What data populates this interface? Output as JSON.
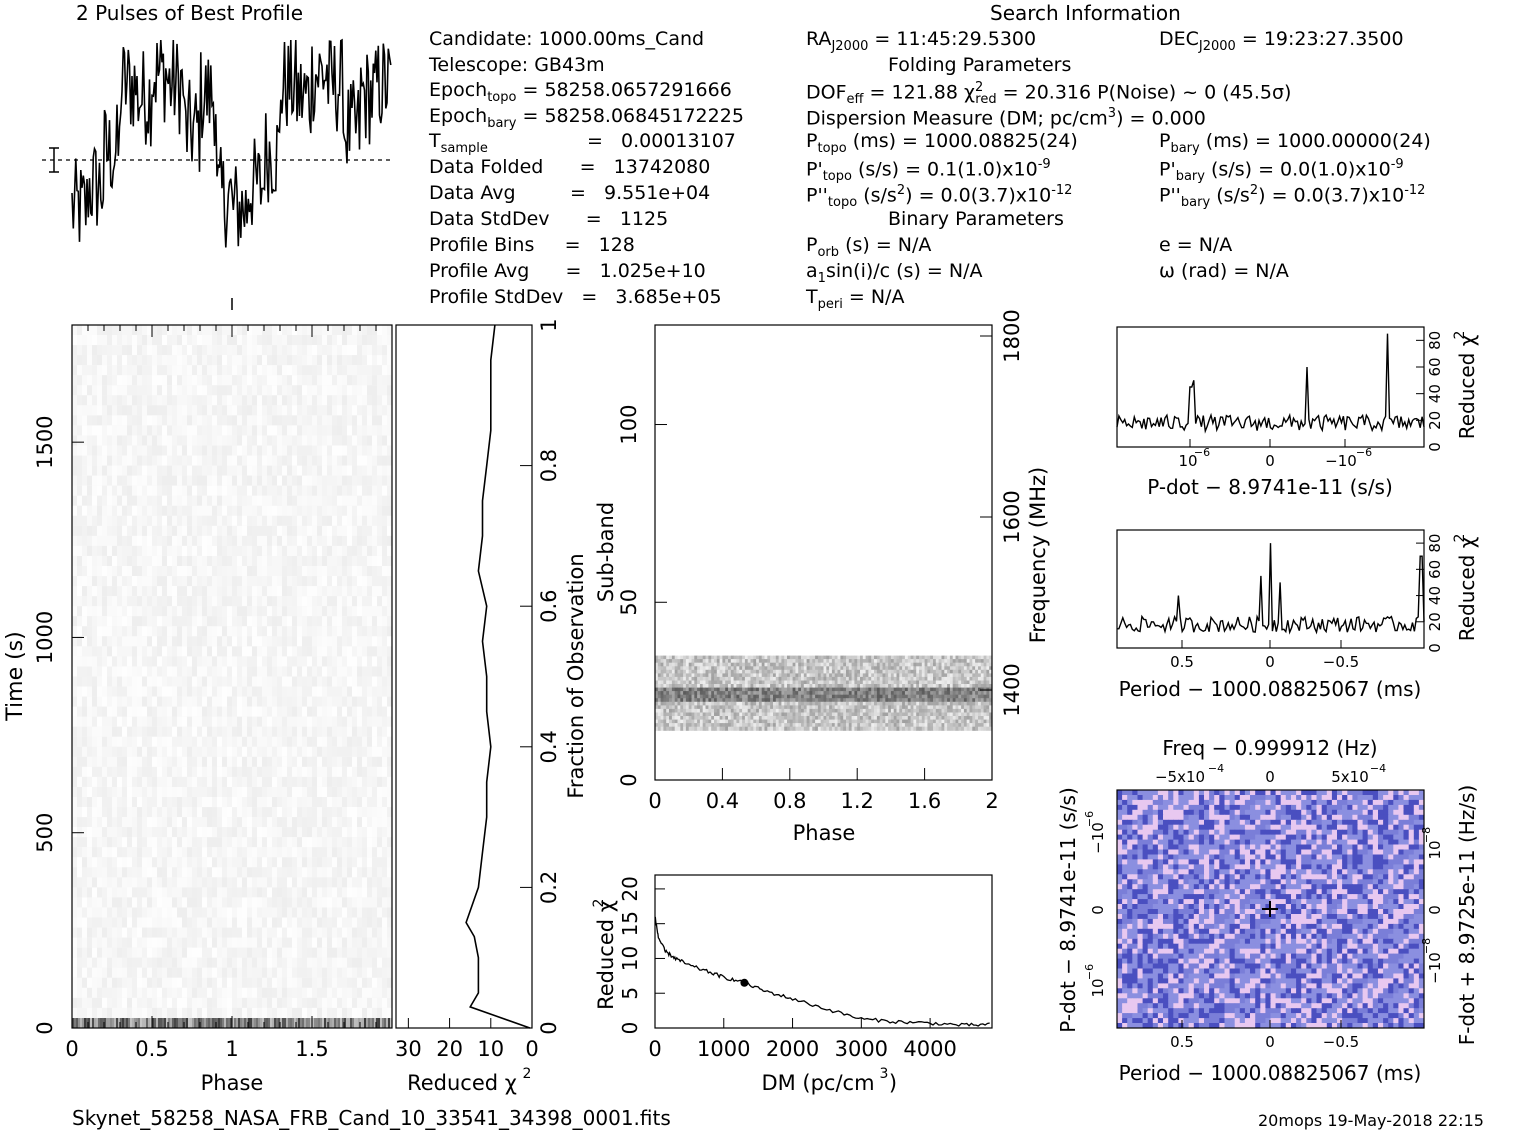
{
  "profile_title": "2 Pulses of Best Profile",
  "search_title": "Search Information",
  "info": {
    "candidate": "Candidate:  1000.00ms_Cand",
    "telescope": "Telescope:  GB43m",
    "epoch_topo_label": "Epoch",
    "epoch_topo_sub": "topo",
    "epoch_topo_val": "= 58258.0657291666",
    "epoch_bary_label": "Epoch",
    "epoch_bary_sub": "bary",
    "epoch_bary_val": "= 58258.06845172225",
    "tsample_label": "T",
    "tsample_sub": "sample",
    "tsample_val": "=   0.00013107",
    "data_folded": "Data Folded      =   13742080",
    "data_avg": "Data Avg         =   9.551e+04",
    "data_stddev": "Data StdDev      =   1125",
    "profile_bins": "Profile Bins     =   128",
    "profile_avg": "Profile Avg      =   1.025e+10",
    "profile_stddev": "Profile StdDev   =   3.685e+05",
    "ra_label": "RA",
    "ra_sub": "J2000",
    "ra_val": "= 11:45:29.5300",
    "dec_label": "DEC",
    "dec_sub": "J2000",
    "dec_val": "= 19:23:27.3500",
    "folding_header": "Folding Parameters",
    "dof_line": "DOF",
    "dof_sub": "eff",
    "dof_val": "= 121.88",
    "chi_label": "χ",
    "chi_sup": "2",
    "chi_sub": "red",
    "chi_val": "= 20.316",
    "pnoise": "P(Noise) ~ 0",
    "sigma": "(45.5σ)",
    "dm_line": "Dispersion Measure (DM; pc/cm",
    "dm_sup": "3",
    "dm_val": ") = 0.000",
    "ptopo_label": "P",
    "ptopo_sub": "topo",
    "ptopo_val": "(ms) =  1000.08825(24)",
    "pbary_label": "P",
    "pbary_sub": "bary",
    "pbary_val": "(ms) =  1000.00000(24)",
    "pdtopo_label": "P'",
    "pdtopo_sub": "topo",
    "pdtopo_val": "(s/s) =  0.1(1.0)x10",
    "pdtopo_exp": "-9",
    "pdbary_label": "P'",
    "pdbary_sub": "bary",
    "pdbary_val": "(s/s) = 0.0(1.0)x10",
    "pdbary_exp": "-9",
    "pddtopo_label": "P''",
    "pddtopo_sub": "topo",
    "pddtopo_val": "(s/s",
    "pddtopo_val2": ") = 0.0(3.7)x10",
    "pddtopo_exp": "-12",
    "pddbary_label": "P''",
    "pddbary_sub": "bary",
    "pddbary_val": "(s/s",
    "pddbary_val2": ") = 0.0(3.7)x10",
    "pddbary_exp": "-12",
    "binary_header": "Binary Parameters",
    "porb_label": "P",
    "porb_sub": "orb",
    "porb_val": "(s) = N/A",
    "a1_label": "a",
    "a1_sub": "1",
    "a1_val": "sin(i)/c (s) = N/A",
    "tperi_label": "T",
    "tperi_sub": "peri",
    "tperi_val": "= N/A",
    "e_val": "e = N/A",
    "omega_val": "ω (rad) = N/A"
  },
  "footer": {
    "filename": "Skynet_58258_NASA_FRB_Cand_10_33541_34398_0001.fits",
    "stamp": "20mops 19-May-2018 22:15"
  },
  "chart_data": [
    {
      "type": "line",
      "name": "profile",
      "title": "2 Pulses of Best Profile",
      "x_range": [
        0,
        2
      ],
      "description_values": "noisy profile, two pulses; relative amplitude 0-1",
      "segments": [
        {
          "phase": [
            0.0,
            0.1
          ],
          "level": 0.25
        },
        {
          "phase": [
            0.1,
            0.2
          ],
          "level": 0.35
        },
        {
          "phase": [
            0.2,
            0.3
          ],
          "level": 0.5
        },
        {
          "phase": [
            0.3,
            0.4
          ],
          "level": 0.8
        },
        {
          "phase": [
            0.4,
            0.5
          ],
          "level": 0.75
        },
        {
          "phase": [
            0.5,
            0.6
          ],
          "level": 0.85
        },
        {
          "phase": [
            0.6,
            0.7
          ],
          "level": 0.8
        },
        {
          "phase": [
            0.7,
            0.8
          ],
          "level": 0.6
        },
        {
          "phase": [
            0.8,
            0.9
          ],
          "level": 0.75
        },
        {
          "phase": [
            0.9,
            1.0
          ],
          "level": 0.3
        },
        {
          "phase": [
            1.0,
            1.1
          ],
          "level": 0.25
        },
        {
          "phase": [
            1.1,
            1.2
          ],
          "level": 0.35
        },
        {
          "phase": [
            1.2,
            1.3
          ],
          "level": 0.5
        },
        {
          "phase": [
            1.3,
            1.4
          ],
          "level": 0.8
        },
        {
          "phase": [
            1.4,
            1.5
          ],
          "level": 0.75
        },
        {
          "phase": [
            1.5,
            1.6
          ],
          "level": 0.85
        },
        {
          "phase": [
            1.6,
            1.7
          ],
          "level": 0.8
        },
        {
          "phase": [
            1.7,
            1.8
          ],
          "level": 0.6
        },
        {
          "phase": [
            1.8,
            1.9
          ],
          "level": 0.75
        },
        {
          "phase": [
            1.9,
            2.0
          ],
          "level": 0.8
        }
      ]
    },
    {
      "type": "heatmap",
      "name": "time-phase",
      "xlabel": "Phase",
      "ylabel": "Time (s)",
      "x_range": [
        0,
        2
      ],
      "y_range": [
        0,
        1800
      ],
      "xticks": [
        "0",
        "0.5",
        "1",
        "1.5"
      ],
      "yticks": [
        "0",
        "500",
        "1000",
        "1500"
      ],
      "right_axis_label": "Fraction of Observation",
      "right_ticks": [
        "0",
        "0.2",
        "0.4",
        "0.6",
        "0.8",
        "1"
      ]
    },
    {
      "type": "line",
      "name": "reduced-chi2-vs-time",
      "xlabel": "Reduced χ2",
      "xticks": [
        "30",
        "20",
        "10",
        "0"
      ],
      "x_range": [
        33,
        0
      ],
      "y_fraction": [
        0.0,
        0.03,
        0.05,
        0.1,
        0.13,
        0.15,
        0.2,
        0.25,
        0.3,
        0.35,
        0.4,
        0.45,
        0.5,
        0.55,
        0.6,
        0.65,
        0.7,
        0.75,
        0.8,
        0.85,
        0.9,
        0.95,
        1.0
      ],
      "chi2": [
        0.5,
        15,
        13,
        13,
        14,
        16,
        13,
        12,
        11,
        11,
        10,
        11,
        11,
        12,
        11,
        13,
        12,
        12,
        11,
        10,
        10,
        10,
        9
      ]
    },
    {
      "type": "heatmap",
      "name": "subband-phase",
      "xlabel": "Phase",
      "ylabel": "Sub-band",
      "right_axis_label": "Frequency (MHz)",
      "x_range": [
        0,
        2
      ],
      "y_range": [
        0,
        128
      ],
      "xticks": [
        "0",
        "0.4",
        "0.8",
        "1.2",
        "1.6",
        "2"
      ],
      "yticks": [
        "0",
        "50",
        "100"
      ],
      "right_ticks": [
        "1400",
        "1600",
        "1800"
      ],
      "filled_subbands": [
        14,
        35
      ]
    },
    {
      "type": "line",
      "name": "dm-curve",
      "xlabel": "DM (pc/cm3)",
      "ylabel": "Reduced χ2",
      "x_range": [
        0,
        4900
      ],
      "y_range": [
        0,
        22
      ],
      "xticks": [
        "0",
        "1000",
        "2000",
        "3000",
        "4000"
      ],
      "yticks": [
        "0",
        "5",
        "10",
        "15",
        "20"
      ],
      "x": [
        0,
        50,
        150,
        300,
        500,
        800,
        1000,
        1300,
        1600,
        2000,
        2500,
        3000,
        3500,
        4000,
        4500,
        4900
      ],
      "y": [
        16,
        13,
        11,
        10,
        9,
        8,
        7.3,
        6.5,
        5.3,
        4.2,
        2.7,
        1.3,
        0.9,
        0.7,
        0.4,
        0.5
      ]
    },
    {
      "type": "line",
      "name": "pdot-curve",
      "xlabel": "P-dot − 8.9741e-11 (s/s)",
      "ylabel": "Reduced χ2",
      "y_range": [
        0,
        90
      ],
      "yticks": [
        "0",
        "20",
        "40",
        "60",
        "80"
      ],
      "xtick_labels": [
        "10^-6",
        "0",
        "-10^-6"
      ]
    },
    {
      "type": "line",
      "name": "period-curve",
      "xlabel": "Period − 1000.08825067 (ms)",
      "ylabel": "Reduced χ2",
      "y_range": [
        0,
        90
      ],
      "yticks": [
        "0",
        "20",
        "40",
        "60",
        "80"
      ],
      "xticks": [
        "0.5",
        "0",
        "-0.5"
      ]
    },
    {
      "type": "heatmap",
      "name": "period-pdot",
      "xlabel": "Period − 1000.08825067 (ms)",
      "ylabel": "P-dot − 8.9741e-11 (s/s)",
      "top_label": "Freq − 0.999912 (Hz)",
      "right_label": "F-dot + 8.9725e-11 (Hz/s)",
      "xticks": [
        "0.5",
        "0",
        "-0.5"
      ],
      "top_ticks": [
        "-5x10^-4",
        "0",
        "5x10^-4"
      ],
      "yticks": [
        "10^-6",
        "0",
        "-10^-6"
      ],
      "right_ticks": [
        "-10^-8",
        "0",
        "10^-8"
      ],
      "colors": {
        "base": "#8b8fe0",
        "dark": "#4a4fc0",
        "light": "#e8c8f0"
      }
    }
  ]
}
